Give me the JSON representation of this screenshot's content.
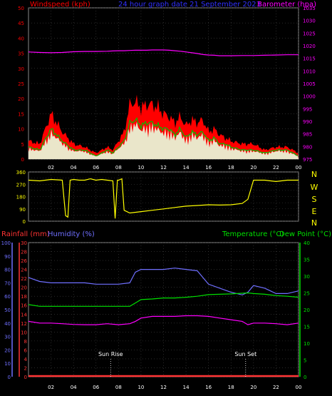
{
  "colors": {
    "wind": "#ff0000",
    "gust": "#00c000",
    "windlight": "#e8ffe0",
    "baro": "#ff00ff",
    "direction": "#ffff00",
    "rain": "#ff3333",
    "humidity": "#6f6fff",
    "temperature": "#00e000",
    "dewpoint": "#ff00ff",
    "text_green": "#00e000",
    "grid": "#444444"
  },
  "top": {
    "title_left": "Windspeed (kph)",
    "title_center": "24 hour graph date 21 September 2023",
    "title_right": "Barometer (hpa)"
  },
  "mid": {
    "compass": [
      "N",
      "W",
      "S",
      "E",
      "N"
    ]
  },
  "bottom": {
    "title_rain": "Rainfall (mm)",
    "title_humidity": "Humidity (%)",
    "title_temp": "Temperature (°C)",
    "title_dew": "Dew Point (°C)",
    "sunrise_label": "Sun Rise",
    "sunset_label": "Sun Set"
  },
  "chart_data": [
    {
      "type": "area",
      "title": "24 hour graph date 21 September 2023",
      "x_hours": [
        0,
        1,
        2,
        3,
        4,
        5,
        6,
        7,
        7.5,
        8,
        8.5,
        9,
        9.5,
        10,
        10.5,
        11,
        11.5,
        12,
        12.5,
        13,
        13.5,
        14,
        14.5,
        15,
        15.5,
        16,
        16.5,
        17,
        17.5,
        18,
        19,
        20,
        21,
        22,
        23,
        24
      ],
      "x_ticks": [
        "02",
        "04",
        "06",
        "08",
        "10",
        "12",
        "14",
        "16",
        "18",
        "20",
        "22",
        "00"
      ],
      "x_tick_hours": [
        2,
        4,
        6,
        8,
        10,
        12,
        14,
        16,
        18,
        20,
        22,
        24
      ],
      "series": [
        {
          "name": "Windspeed",
          "axis": "left",
          "values": [
            6,
            5,
            15,
            9,
            5,
            4,
            2,
            4,
            3,
            6,
            9,
            18,
            19,
            17,
            18,
            18,
            17,
            15,
            14,
            12,
            14,
            11,
            13,
            12,
            13,
            9,
            10,
            8,
            7,
            6,
            5,
            5,
            3,
            4,
            4,
            2
          ]
        },
        {
          "name": "Gust",
          "axis": "left",
          "values": [
            4,
            3,
            10,
            6,
            3,
            3,
            1,
            3,
            2,
            4,
            6,
            12,
            13,
            11,
            12,
            12,
            11,
            10,
            10,
            8,
            10,
            7,
            9,
            8,
            9,
            6,
            7,
            5,
            5,
            4,
            3,
            3,
            2,
            3,
            3,
            1
          ]
        },
        {
          "name": "Barometer",
          "axis": "right",
          "values": [
            1017.5,
            1017.3,
            1017.2,
            1017.3,
            1017.6,
            1017.7,
            1017.7,
            1017.8,
            1017.9,
            1018.0,
            1018.0,
            1018.1,
            1018.2,
            1018.2,
            1018.2,
            1018.3,
            1018.3,
            1018.3,
            1018.2,
            1018.0,
            1017.8,
            1017.5,
            1017.2,
            1016.9,
            1016.5,
            1016.3,
            1016.2,
            1016.0,
            1016.0,
            1016.0,
            1016.1,
            1016.1,
            1016.2,
            1016.3,
            1016.4,
            1016.4
          ]
        }
      ],
      "left_axis": {
        "range": [
          0,
          50
        ],
        "ticks": [
          0,
          5,
          10,
          15,
          20,
          25,
          30,
          35,
          40,
          45,
          50
        ]
      },
      "right_axis": {
        "range": [
          975,
          1035
        ],
        "ticks": [
          975,
          980,
          985,
          990,
          995,
          1000,
          1005,
          1010,
          1015,
          1020,
          1025,
          1030,
          1035
        ]
      },
      "xlabel": "",
      "ylabel_left": "Windspeed (kph)",
      "ylabel_right": "Barometer (hpa)"
    },
    {
      "type": "line",
      "series": [
        {
          "name": "Wind direction",
          "x_hours": [
            0,
            1,
            2,
            3,
            3.3,
            3.5,
            3.7,
            4,
            4.5,
            5,
            5.5,
            6,
            6.5,
            7,
            7.5,
            7.7,
            7.9,
            8,
            8.3,
            8.5,
            9,
            10,
            11,
            12,
            13,
            14,
            15,
            16,
            17,
            18,
            19,
            19.5,
            20,
            21,
            22,
            23,
            24
          ],
          "values": [
            300,
            295,
            305,
            300,
            40,
            30,
            300,
            305,
            300,
            300,
            310,
            300,
            305,
            300,
            295,
            20,
            300,
            300,
            310,
            80,
            60,
            70,
            80,
            90,
            100,
            110,
            115,
            120,
            118,
            120,
            130,
            160,
            300,
            300,
            290,
            300,
            300
          ]
        }
      ],
      "y_axis": {
        "range": [
          0,
          360
        ],
        "ticks": [
          0,
          45,
          90,
          135,
          180,
          225,
          270,
          315,
          360
        ],
        "tick_labels": [
          "0",
          "",
          "90",
          "",
          "180",
          "",
          "270",
          "",
          "360"
        ]
      }
    },
    {
      "type": "line",
      "x_hours": [
        0,
        1,
        2,
        3,
        4,
        5,
        6,
        7,
        8,
        9,
        9.5,
        10,
        11,
        12,
        13,
        14,
        15,
        16,
        17,
        18,
        19,
        19.5,
        20,
        21,
        22,
        23,
        24
      ],
      "series": [
        {
          "name": "Humidity (%)",
          "axis": "humidity",
          "values": [
            74,
            71,
            70,
            70,
            70,
            70,
            69,
            69,
            69,
            70,
            78,
            80,
            80,
            80,
            81,
            80,
            79,
            69,
            66,
            63,
            61,
            63,
            68,
            66,
            62,
            62,
            64
          ]
        },
        {
          "name": "Temperature (°C)",
          "axis": "temperature",
          "values": [
            21.5,
            21,
            21,
            21,
            21,
            21,
            21,
            21,
            21,
            21,
            22,
            23,
            23.2,
            23.5,
            23.5,
            23.7,
            24,
            24.5,
            24.6,
            24.7,
            24.9,
            25,
            24.8,
            24.6,
            24.2,
            24.0,
            23.7
          ]
        },
        {
          "name": "Dew Point (°C)",
          "axis": "temperature",
          "values": [
            16.5,
            16,
            16,
            15.8,
            15.6,
            15.5,
            15.5,
            15.8,
            15.5,
            15.8,
            16.5,
            17.5,
            18,
            18,
            18,
            18.2,
            18.2,
            18,
            17.5,
            17,
            16.5,
            15.5,
            16,
            16,
            15.8,
            15.5,
            16
          ]
        },
        {
          "name": "Rainfall (mm)",
          "axis": "rain",
          "values": [
            0,
            0,
            0,
            0,
            0,
            0,
            0,
            0,
            0,
            0,
            0,
            0,
            0,
            0,
            0,
            0,
            0,
            0,
            0,
            0,
            0,
            0,
            0,
            0,
            0,
            0,
            0
          ]
        }
      ],
      "rain_axis": {
        "range": [
          0,
          30
        ],
        "ticks": [
          0,
          2,
          4,
          6,
          8,
          10,
          12,
          14,
          16,
          18,
          20,
          22,
          24,
          26,
          28,
          30
        ]
      },
      "humidity_axis": {
        "range": [
          0,
          100
        ],
        "ticks": [
          0,
          10,
          20,
          30,
          40,
          50,
          60,
          70,
          80,
          90,
          100
        ]
      },
      "temperature_axis": {
        "range": [
          0,
          40
        ],
        "ticks": [
          0,
          5,
          10,
          15,
          20,
          25,
          30,
          35,
          40
        ]
      },
      "sunrise_hour": 7.3,
      "sunset_hour": 19.3,
      "x_ticks": [
        "02",
        "04",
        "06",
        "08",
        "10",
        "12",
        "14",
        "16",
        "18",
        "20",
        "22",
        "00"
      ],
      "x_tick_hours": [
        2,
        4,
        6,
        8,
        10,
        12,
        14,
        16,
        18,
        20,
        22,
        24
      ]
    }
  ]
}
